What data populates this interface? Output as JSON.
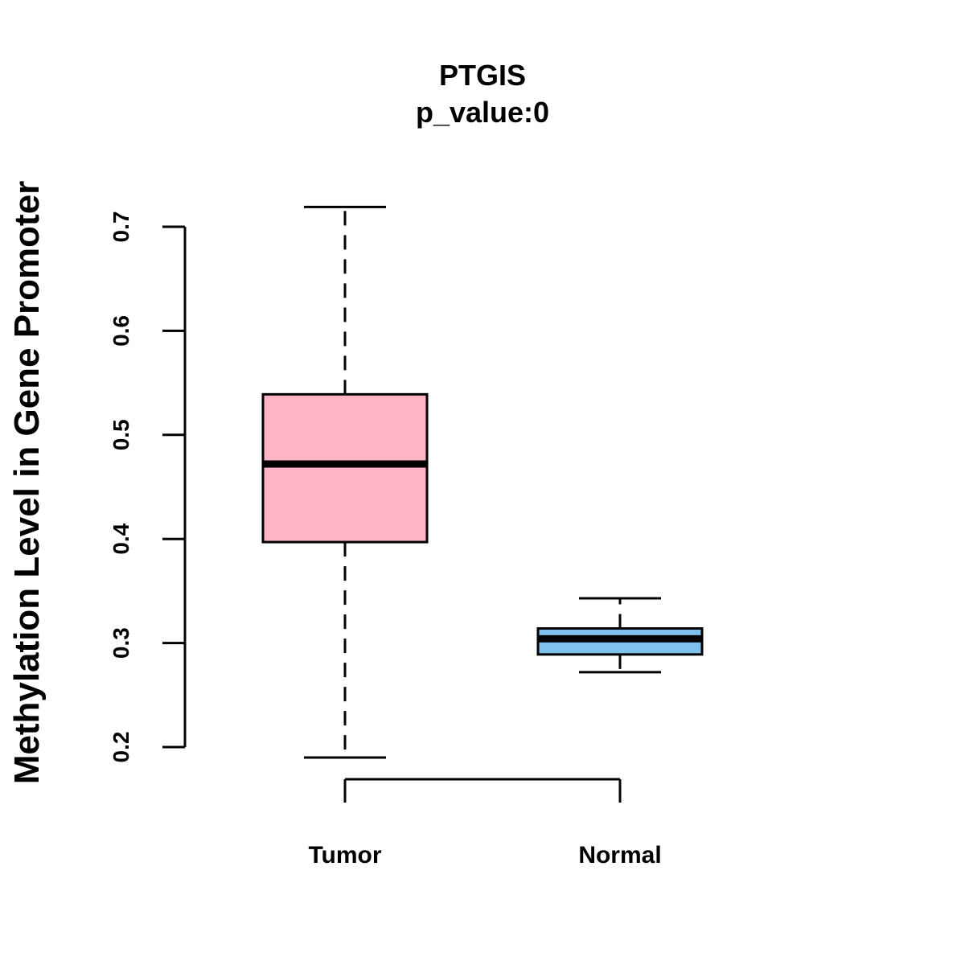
{
  "chart_data": {
    "type": "boxplot",
    "title": "PTGIS",
    "subtitle": "p_value:0",
    "xlabel": "",
    "ylabel": "Methylation Level in Gene Promoter",
    "ylim": [
      0.2,
      0.7
    ],
    "yticks": [
      0.2,
      0.3,
      0.4,
      0.5,
      0.6,
      0.7
    ],
    "ytick_labels": [
      "0.2",
      "0.3",
      "0.4",
      "0.5",
      "0.6",
      "0.7"
    ],
    "categories": [
      "Tumor",
      "Normal"
    ],
    "boxes": [
      {
        "name": "Tumor",
        "min": 0.19,
        "q1": 0.397,
        "median": 0.472,
        "q3": 0.539,
        "max": 0.719,
        "color": "#FFB3C4"
      },
      {
        "name": "Normal",
        "min": 0.272,
        "q1": 0.289,
        "median": 0.304,
        "q3": 0.314,
        "max": 0.343,
        "color": "#7EC0EE"
      }
    ],
    "grid": false,
    "legend": "none"
  }
}
